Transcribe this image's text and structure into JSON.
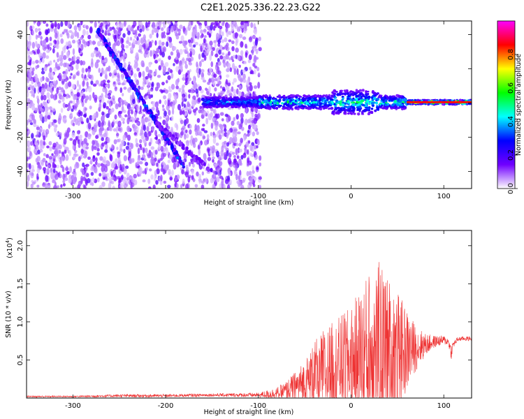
{
  "title": "C2E1.2025.336.22.23.G22",
  "chart_data": [
    {
      "type": "heatmap",
      "xlabel": "Height of straight line (km)",
      "ylabel": "Frequency (Hz)",
      "xlim": [
        -350,
        130
      ],
      "ylim": [
        -50,
        48
      ],
      "x_ticks": [
        -300,
        -200,
        -100,
        0,
        100
      ],
      "x_tick_labels": [
        "-300",
        "-200",
        "-100",
        "0",
        "100"
      ],
      "y_ticks": [
        -40,
        -20,
        0,
        20,
        40
      ],
      "y_tick_labels": [
        "-40",
        "-20",
        "0",
        "20",
        "40"
      ],
      "features": {
        "noise_region_x": [
          -350,
          -98
        ],
        "descending_tone": {
          "x": [
            -275,
            -180
          ],
          "y": [
            44,
            -37
          ]
        },
        "descending_tone_faint": {
          "x": [
            -210,
            -150
          ],
          "y": [
            -12,
            -40
          ]
        },
        "carrier_line_x": [
          -160,
          130
        ],
        "carrier_y_hz": 0.5
      },
      "colorbar": {
        "label": "Normalized spectral amplitude",
        "range": [
          0,
          1
        ],
        "ticks": [
          0,
          0.2,
          0.4,
          0.6,
          0.8
        ],
        "tick_labels": [
          "0.0",
          "0.2",
          "0.4",
          "0.6",
          "0.8"
        ],
        "colormap": [
          "#ffffff",
          "#7000ff",
          "#0000ff",
          "#00ffff",
          "#00ff00",
          "#ffff00",
          "#ff0000",
          "#ff00ff"
        ]
      }
    },
    {
      "type": "line",
      "xlabel": "Height of straight line (km)",
      "ylabel": "SNR (10 * v/v)",
      "scale_label": "(x10",
      "scale_exp": "4",
      "scale_close": ")",
      "color": "#ee3333",
      "xlim": [
        -350,
        130
      ],
      "ylim": [
        0,
        2.2
      ],
      "x_ticks": [
        -300,
        -200,
        -100,
        0,
        100
      ],
      "x_tick_labels": [
        "-300",
        "-200",
        "-100",
        "0",
        "100"
      ],
      "y_ticks": [
        0.5,
        1.0,
        1.5,
        2.0
      ],
      "y_tick_labels": [
        "0.5",
        "1.0",
        "1.5",
        "2.0"
      ],
      "envelope": {
        "x": [
          -350,
          -300,
          -250,
          -200,
          -150,
          -100,
          -80,
          -70,
          -60,
          -50,
          -40,
          -30,
          -20,
          -10,
          0,
          10,
          20,
          30,
          40,
          50,
          60,
          70,
          80,
          90,
          100,
          105,
          108,
          110,
          115,
          120,
          130
        ],
        "base": [
          0.02,
          0.02,
          0.03,
          0.03,
          0.04,
          0.04,
          0.06,
          0.1,
          0.15,
          0.2,
          0.28,
          0.35,
          0.4,
          0.45,
          0.5,
          0.55,
          0.6,
          0.6,
          0.6,
          0.6,
          0.62,
          0.66,
          0.7,
          0.74,
          0.76,
          0.74,
          0.6,
          0.7,
          0.77,
          0.78,
          0.78
        ],
        "spread": [
          0.01,
          0.01,
          0.02,
          0.02,
          0.02,
          0.03,
          0.08,
          0.12,
          0.2,
          0.3,
          0.45,
          0.55,
          0.6,
          0.65,
          0.7,
          0.9,
          1.1,
          1.2,
          1.0,
          0.8,
          0.55,
          0.3,
          0.15,
          0.08,
          0.06,
          0.05,
          0.1,
          0.05,
          0.03,
          0.03,
          0.03
        ]
      }
    }
  ]
}
